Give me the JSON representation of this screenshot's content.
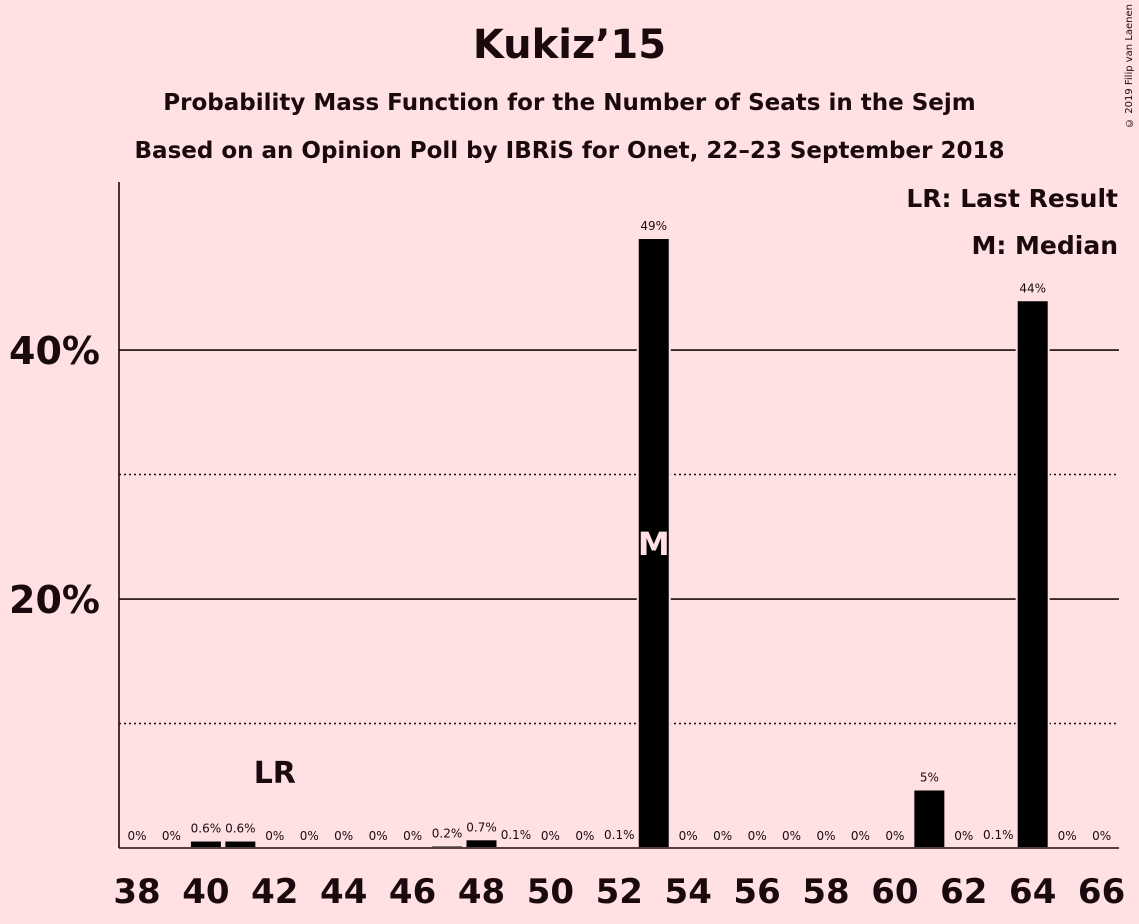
{
  "chart_data": {
    "type": "bar",
    "title": "Kukiz’15",
    "subtitle": "Probability Mass Function for the Number of Seats in the Sejm",
    "subtitle2": "Based on an Opinion Poll by IBRiS for Onet, 22–23 September 2018",
    "copyright": "© 2019 Filip van Laenen",
    "legend": [
      "LR: Last Result",
      "M: Median"
    ],
    "x": [
      38,
      39,
      40,
      41,
      42,
      43,
      44,
      45,
      46,
      47,
      48,
      49,
      50,
      51,
      52,
      53,
      54,
      55,
      56,
      57,
      58,
      59,
      60,
      61,
      62,
      63,
      64,
      65,
      66
    ],
    "values": [
      0,
      0,
      0.6,
      0.6,
      0,
      0,
      0,
      0,
      0,
      0.2,
      0.7,
      0.1,
      0,
      0,
      0.1,
      49,
      0,
      0,
      0,
      0,
      0,
      0,
      0,
      4.7,
      0,
      0.1,
      44,
      0,
      0
    ],
    "labels": [
      "0%",
      "0%",
      "0.6%",
      "0.6%",
      "0%",
      "0%",
      "0%",
      "0%",
      "0%",
      "0.2%",
      "0.7%",
      "0.1%",
      "0%",
      "0%",
      "0.1%",
      "49%",
      "0%",
      "0%",
      "0%",
      "0%",
      "0%",
      "0%",
      "0%",
      "5%",
      "0%",
      "0.1%",
      "44%",
      "0%",
      "0%"
    ],
    "x_tick_labels": [
      "38",
      "40",
      "42",
      "44",
      "46",
      "48",
      "50",
      "52",
      "54",
      "56",
      "58",
      "60",
      "62",
      "64",
      "66"
    ],
    "y_tick_labels": [
      "20%",
      "40%"
    ],
    "y_ticks": [
      20,
      40
    ],
    "y_minor_ticks": [
      10,
      30
    ],
    "ylim": [
      0,
      53.5
    ],
    "last_result": {
      "seat": 42,
      "label": "LR"
    },
    "median": {
      "seat": 53,
      "label": "M"
    },
    "bar_color": "#000000",
    "background_color": "#ffe0e3"
  }
}
